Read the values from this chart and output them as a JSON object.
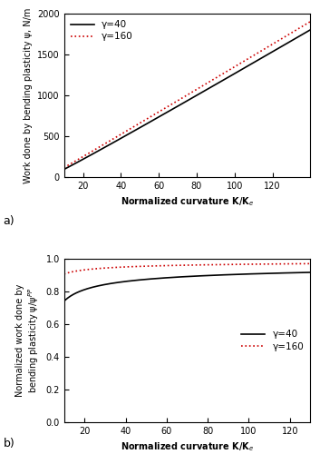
{
  "top_plot": {
    "xlabel": "Normalized curvature K/K$_e$",
    "ylabel": "Work done by bending plasticity ψ, N/m",
    "xlim": [
      10,
      140
    ],
    "ylim": [
      0,
      2000
    ],
    "xticks": [
      20,
      40,
      60,
      80,
      100,
      120
    ],
    "yticks": [
      0,
      500,
      1000,
      1500,
      2000
    ],
    "legend_labels": [
      "γ=40",
      "γ=160"
    ],
    "label_a": "a)"
  },
  "bottom_plot": {
    "xlabel": "Normalized curvature K/K$_e$",
    "ylabel": "Normalized work done by\nbending plasticity ψ/ψ$^{PP}$",
    "xlim": [
      10,
      130
    ],
    "ylim": [
      0,
      1.0
    ],
    "xticks": [
      20,
      40,
      60,
      80,
      100,
      120
    ],
    "yticks": [
      0,
      0.2,
      0.4,
      0.6,
      0.8,
      1.0
    ],
    "legend_labels": [
      "γ=40",
      "γ=160"
    ],
    "label_b": "b)"
  },
  "line_color_40": "#000000",
  "line_color_160": "#cc0000",
  "line_style_40": "-",
  "line_style_160": ":",
  "line_width": 1.2,
  "font_size_label": 7,
  "font_size_tick": 7,
  "font_size_legend": 7.5,
  "font_size_annotation": 9,
  "background_color": "#ffffff"
}
